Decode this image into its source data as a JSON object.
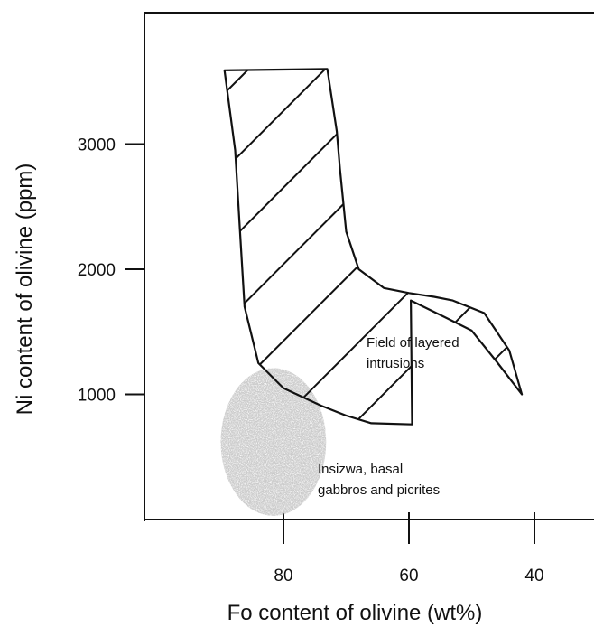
{
  "chart_data": {
    "type": "scatter",
    "title": "",
    "xlabel": "Fo content of olivine (wt%)",
    "ylabel": "Ni content of olivine (ppm)",
    "x_reversed": true,
    "xlim": [
      100,
      31
    ],
    "ylim": [
      0,
      4250
    ],
    "x_ticks": [
      80,
      60,
      40
    ],
    "y_ticks": [
      1000,
      2000,
      3000
    ],
    "grid": false,
    "fields": [
      {
        "name": "layered-intrusions-field",
        "fill": "hatched",
        "polygon": [
          [
            89.4,
            3590
          ],
          [
            87.7,
            2950
          ],
          [
            86.8,
            2200
          ],
          [
            86.2,
            1700
          ],
          [
            84.0,
            1250
          ],
          [
            80.0,
            1050
          ],
          [
            74.0,
            910
          ],
          [
            70.0,
            830
          ],
          [
            66.0,
            770
          ],
          [
            59.5,
            760
          ],
          [
            59.7,
            1750
          ],
          [
            54.0,
            1610
          ],
          [
            50.0,
            1510
          ],
          [
            46.0,
            1260
          ],
          [
            42.0,
            1000
          ],
          [
            44.0,
            1350
          ],
          [
            48.0,
            1650
          ],
          [
            53.0,
            1750
          ],
          [
            56.0,
            1780
          ],
          [
            60.0,
            1810
          ],
          [
            64.0,
            1850
          ],
          [
            68.0,
            2000
          ],
          [
            70.0,
            2300
          ],
          [
            71.0,
            2800
          ],
          [
            71.5,
            3100
          ],
          [
            73.0,
            3600
          ]
        ]
      },
      {
        "name": "insizwa-field",
        "fill": "stippled-gray",
        "center": [
          81.6,
          620
        ],
        "radius_x": 8.4,
        "radius_y": 590
      }
    ],
    "annotations": [
      {
        "lines": [
          "Field of layered",
          "intrusions"
        ]
      },
      {
        "lines": [
          "Insizwa, basal",
          "gabbros and picrites"
        ]
      }
    ]
  }
}
